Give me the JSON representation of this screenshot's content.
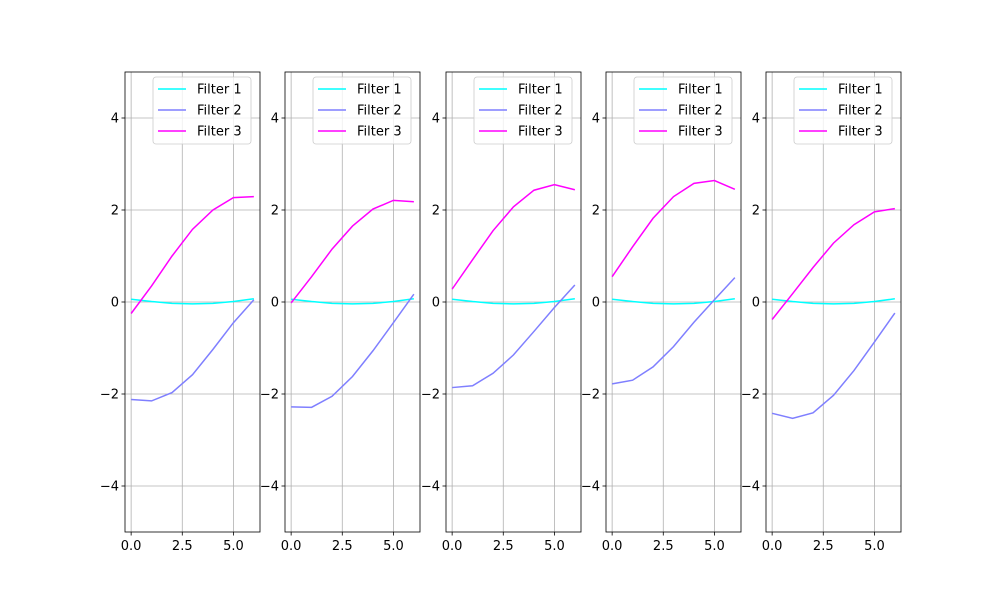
{
  "figure": {
    "background": "#ffffff"
  },
  "chart_data": [
    {
      "type": "line",
      "title": "",
      "xlabel": "",
      "ylabel": "",
      "xlim": [
        -0.3,
        6.3
      ],
      "ylim": [
        -5,
        5
      ],
      "xticks": [
        0,
        2.5,
        5
      ],
      "xtick_labels": [
        "0.0",
        "2.5",
        "5.0"
      ],
      "yticks": [
        -4,
        -2,
        0,
        2,
        4
      ],
      "ytick_labels": [
        "−4",
        "−2",
        "0",
        "2",
        "4"
      ],
      "grid": true,
      "legend": "top-right",
      "x": [
        0,
        1,
        2,
        3,
        4,
        5,
        6
      ],
      "series": [
        {
          "name": "Filter 1",
          "color": "#00ffff",
          "values": [
            0.06,
            0.01,
            -0.03,
            -0.04,
            -0.03,
            0.01,
            0.07
          ]
        },
        {
          "name": "Filter 2",
          "color": "#7f7fff",
          "values": [
            -2.12,
            -2.15,
            -1.97,
            -1.58,
            -1.03,
            -0.45,
            0.05
          ]
        },
        {
          "name": "Filter 3",
          "color": "#ff00ff",
          "values": [
            -0.25,
            0.35,
            1.0,
            1.58,
            2.0,
            2.27,
            2.29
          ]
        }
      ]
    },
    {
      "type": "line",
      "title": "",
      "xlabel": "",
      "ylabel": "",
      "xlim": [
        -0.3,
        6.3
      ],
      "ylim": [
        -5,
        5
      ],
      "xticks": [
        0,
        2.5,
        5
      ],
      "xtick_labels": [
        "0.0",
        "2.5",
        "5.0"
      ],
      "yticks": [
        -4,
        -2,
        0,
        2,
        4
      ],
      "ytick_labels": [
        "−4",
        "−2",
        "0",
        "2",
        "4"
      ],
      "grid": true,
      "legend": "top-right",
      "x": [
        0,
        1,
        2,
        3,
        4,
        5,
        6
      ],
      "series": [
        {
          "name": "Filter 1",
          "color": "#00ffff",
          "values": [
            0.06,
            0.01,
            -0.03,
            -0.04,
            -0.03,
            0.01,
            0.07
          ]
        },
        {
          "name": "Filter 2",
          "color": "#7f7fff",
          "values": [
            -2.28,
            -2.29,
            -2.05,
            -1.62,
            -1.06,
            -0.45,
            0.17
          ]
        },
        {
          "name": "Filter 3",
          "color": "#ff00ff",
          "values": [
            -0.02,
            0.55,
            1.15,
            1.65,
            2.02,
            2.21,
            2.18
          ]
        }
      ]
    },
    {
      "type": "line",
      "title": "",
      "xlabel": "",
      "ylabel": "",
      "xlim": [
        -0.3,
        6.3
      ],
      "ylim": [
        -5,
        5
      ],
      "xticks": [
        0,
        2.5,
        5
      ],
      "xtick_labels": [
        "0.0",
        "2.5",
        "5.0"
      ],
      "yticks": [
        -4,
        -2,
        0,
        2,
        4
      ],
      "ytick_labels": [
        "−4",
        "−2",
        "0",
        "2",
        "4"
      ],
      "grid": true,
      "legend": "top-right",
      "x": [
        0,
        1,
        2,
        3,
        4,
        5,
        6
      ],
      "series": [
        {
          "name": "Filter 1",
          "color": "#00ffff",
          "values": [
            0.06,
            0.01,
            -0.03,
            -0.04,
            -0.03,
            0.01,
            0.07
          ]
        },
        {
          "name": "Filter 2",
          "color": "#7f7fff",
          "values": [
            -1.86,
            -1.82,
            -1.55,
            -1.15,
            -0.64,
            -0.12,
            0.37
          ]
        },
        {
          "name": "Filter 3",
          "color": "#ff00ff",
          "values": [
            0.28,
            0.92,
            1.55,
            2.07,
            2.43,
            2.55,
            2.44
          ]
        }
      ]
    },
    {
      "type": "line",
      "title": "",
      "xlabel": "",
      "ylabel": "",
      "xlim": [
        -0.3,
        6.3
      ],
      "ylim": [
        -5,
        5
      ],
      "xticks": [
        0,
        2.5,
        5
      ],
      "xtick_labels": [
        "0.0",
        "2.5",
        "5.0"
      ],
      "yticks": [
        -4,
        -2,
        0,
        2,
        4
      ],
      "ytick_labels": [
        "−4",
        "−2",
        "0",
        "2",
        "4"
      ],
      "grid": true,
      "legend": "top-right",
      "x": [
        0,
        1,
        2,
        3,
        4,
        5,
        6
      ],
      "series": [
        {
          "name": "Filter 1",
          "color": "#00ffff",
          "values": [
            0.06,
            0.01,
            -0.03,
            -0.04,
            -0.03,
            0.01,
            0.07
          ]
        },
        {
          "name": "Filter 2",
          "color": "#7f7fff",
          "values": [
            -1.78,
            -1.7,
            -1.41,
            -0.97,
            -0.44,
            0.05,
            0.53
          ]
        },
        {
          "name": "Filter 3",
          "color": "#ff00ff",
          "values": [
            0.55,
            1.2,
            1.82,
            2.29,
            2.58,
            2.64,
            2.45
          ]
        }
      ]
    },
    {
      "type": "line",
      "title": "",
      "xlabel": "",
      "ylabel": "",
      "xlim": [
        -0.3,
        6.3
      ],
      "ylim": [
        -5,
        5
      ],
      "xticks": [
        0,
        2.5,
        5
      ],
      "xtick_labels": [
        "0.0",
        "2.5",
        "5.0"
      ],
      "yticks": [
        -4,
        -2,
        0,
        2,
        4
      ],
      "ytick_labels": [
        "−4",
        "−2",
        "0",
        "2",
        "4"
      ],
      "grid": true,
      "legend": "top-right",
      "x": [
        0,
        1,
        2,
        3,
        4,
        5,
        6
      ],
      "series": [
        {
          "name": "Filter 1",
          "color": "#00ffff",
          "values": [
            0.06,
            0.01,
            -0.03,
            -0.04,
            -0.03,
            0.01,
            0.07
          ]
        },
        {
          "name": "Filter 2",
          "color": "#7f7fff",
          "values": [
            -2.42,
            -2.53,
            -2.41,
            -2.03,
            -1.49,
            -0.87,
            -0.24
          ]
        },
        {
          "name": "Filter 3",
          "color": "#ff00ff",
          "values": [
            -0.38,
            0.18,
            0.75,
            1.28,
            1.68,
            1.96,
            2.03
          ]
        }
      ]
    }
  ]
}
